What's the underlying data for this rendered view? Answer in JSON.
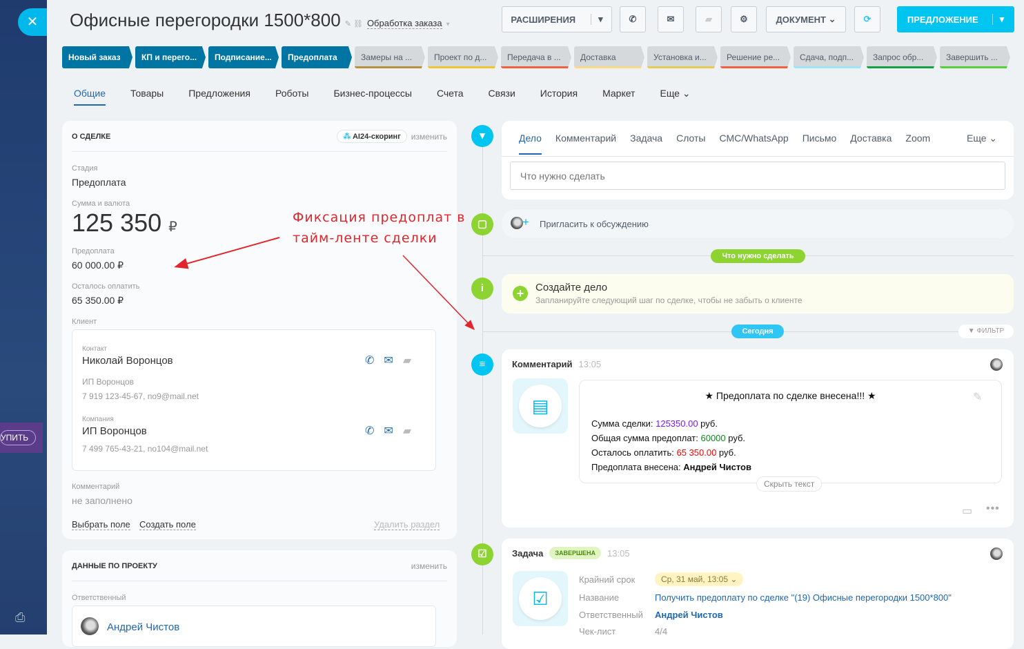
{
  "header": {
    "title": "Офисные перегородки 1500*800",
    "pipeline": "Обработка заказа",
    "buttons": {
      "extensions": "РАСШИРЕНИЯ",
      "document": "ДОКУМЕНТ",
      "offer": "ПРЕДЛОЖЕНИЕ"
    }
  },
  "sidebar": {
    "buy": "УПИТЬ"
  },
  "stages": [
    {
      "label": "Новый заказ",
      "active": true
    },
    {
      "label": "КП и перего...",
      "active": true
    },
    {
      "label": "Подписание...",
      "active": true
    },
    {
      "label": "Предоплата",
      "active": true
    },
    {
      "label": "Замеры на ...",
      "color": "#b8913f"
    },
    {
      "label": "Проект по д...",
      "color": "#f2c530"
    },
    {
      "label": "Передача в ...",
      "color": "#f0603d"
    },
    {
      "label": "Доставка",
      "color": "#fbd88a"
    },
    {
      "label": "Установка и...",
      "color": "#e6cb55"
    },
    {
      "label": "Решение ре...",
      "color": "#f0603d"
    },
    {
      "label": "Сдача, подп...",
      "color": "#9fe4f7"
    },
    {
      "label": "Запрос обр...",
      "color": "#14a043"
    },
    {
      "label": "Завершить ...",
      "color": "#55d03a"
    }
  ],
  "tabs": [
    "Общие",
    "Товары",
    "Предложения",
    "Роботы",
    "Бизнес-процессы",
    "Счета",
    "Связи",
    "История",
    "Маркет",
    "Еще"
  ],
  "deal": {
    "section": "О СДЕЛКЕ",
    "scoring": "AI24-скоринг",
    "edit": "изменить",
    "stage_label": "Стадия",
    "stage": "Предоплата",
    "sum_label": "Сумма и валюта",
    "sum": "125 350",
    "currency": "₽",
    "prepay_label": "Предоплата",
    "prepay": "60 000.00 ₽",
    "left_label": "Осталось оплатить",
    "left": "65 350.00 ₽",
    "client_label": "Клиент",
    "contact_label": "Контакт",
    "contact": "Николай Воронцов",
    "contact_company": "ИП Воронцов",
    "contact_info": "7 919 123-45-67, no9@mail.net",
    "company_label": "Компания",
    "company": "ИП Воронцов",
    "company_info": "7 499 765-43-21, no104@mail.net",
    "comment_label": "Комментарий",
    "comment": "не заполнено",
    "select_field": "Выбрать поле",
    "create_field": "Создать поле",
    "delete_section": "Удалить раздел"
  },
  "project": {
    "section": "ДАННЫЕ ПО ПРОЕКТУ",
    "edit": "изменить",
    "resp_label": "Ответственный",
    "resp": "Андрей Чистов"
  },
  "annotation": {
    "line1": "Фиксация предоплат в",
    "line2": "тайм-ленте сделки"
  },
  "timeline": {
    "tabs": [
      "Дело",
      "Комментарий",
      "Задача",
      "Слоты",
      "СМС/WhatsApp",
      "Письмо",
      "Доставка",
      "Zoom"
    ],
    "more": "Еще",
    "placeholder": "Что нужно сделать",
    "invite": "Пригласить к обсуждению",
    "todo_pill": "Что нужно сделать",
    "create_title": "Создайте дело",
    "create_sub": "Запланируйте следующий шаг по сделке, чтобы не забыть о клиенте",
    "today": "Сегодня",
    "filter": "ФИЛЬТР",
    "comment": {
      "title": "Комментарий",
      "time": "13:05",
      "headline": "★ Предоплата по сделке внесена!!! ★",
      "l1": "Сумма сделки: ",
      "v1": "125350.00",
      "u": " руб.",
      "l2": "Общая сумма предоплат: ",
      "v2": "60000",
      "l3": "Осталось оплатить: ",
      "v3": "65 350.00",
      "l4": "Предоплата внесена: ",
      "v4": "Андрей Чистов",
      "hide": "Скрыть текст"
    },
    "task": {
      "title": "Задача",
      "status": "ЗАВЕРШЕНА",
      "time": "13:05",
      "deadline_label": "Крайний срок",
      "deadline": "Ср, 31 май, 13:05",
      "name_label": "Название",
      "name": "Получить предоплату по сделке \"(19) Офисные перегородки 1500*800\"",
      "resp_label": "Ответственный",
      "resp": "Андрей Чистов",
      "check_label": "Чек-лист",
      "check": "4/4"
    }
  },
  "colors": {
    "accent": "#00c5f0",
    "stage_active": "#0075a3",
    "green": "#8dd432",
    "annotation": "#e0262b",
    "sum": "#7a16ff",
    "prepay": "#0c8a1b",
    "left": "#ff0000"
  }
}
